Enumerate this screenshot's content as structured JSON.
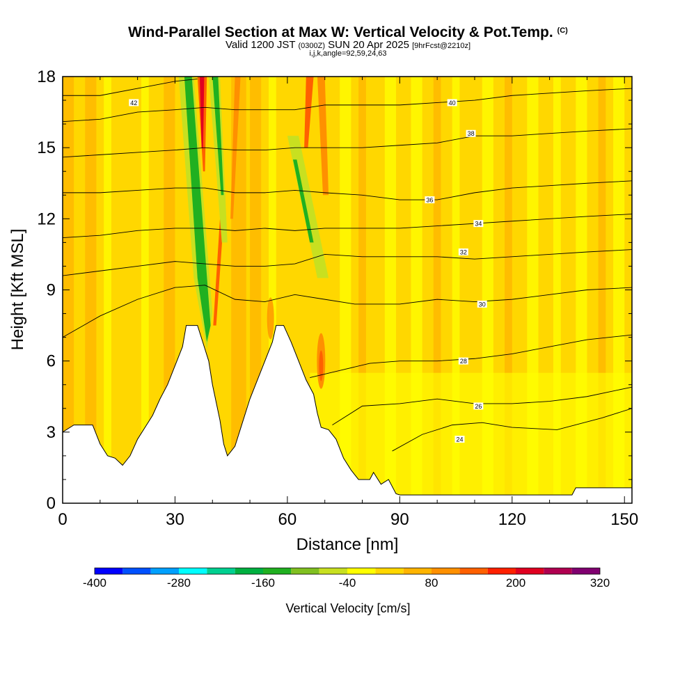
{
  "title": {
    "main": "Wind-Parallel Section at Max W: Vertical Velocity & Pot.Temp.",
    "copyright": "(C)",
    "valid_prefix": "Valid 1200 JST",
    "valid_utc": "(0300Z)",
    "valid_date": "SUN 20 Apr 2025",
    "forecast": "[9hrFcst@2210z]",
    "params": "i,j,k,angle=92,59,24,63"
  },
  "chart_data": {
    "type": "heatmap",
    "xlabel": "Distance [nm]",
    "ylabel": "Height [Kft MSL]",
    "xlim": [
      0,
      152
    ],
    "ylim": [
      0,
      18
    ],
    "xticks": [
      "0",
      "30",
      "60",
      "90",
      "120",
      "150"
    ],
    "yticks": [
      "0",
      "3",
      "6",
      "9",
      "12",
      "15",
      "18"
    ],
    "xtick_values": [
      0,
      30,
      60,
      90,
      120,
      150
    ],
    "ytick_values": [
      0,
      3,
      6,
      9,
      12,
      15,
      18
    ],
    "colorbar": {
      "label": "Vertical Velocity [cm/s]",
      "min": -400,
      "max": 320,
      "step": 40,
      "tick_labels": [
        "-400",
        "-280",
        "-160",
        "-40",
        "80",
        "200",
        "320"
      ],
      "tick_values": [
        -400,
        -280,
        -160,
        -40,
        80,
        200,
        320
      ],
      "colors": [
        "#0000ff",
        "#0050ff",
        "#00a0ff",
        "#00ffff",
        "#00d090",
        "#00b040",
        "#20b020",
        "#80c020",
        "#c8e020",
        "#ffff00",
        "#ffd700",
        "#ffb400",
        "#ff9000",
        "#ff6000",
        "#ff2000",
        "#e00020",
        "#b00050",
        "#800070"
      ]
    },
    "terrain": [
      [
        0,
        3
      ],
      [
        3,
        3.3
      ],
      [
        8,
        3.3
      ],
      [
        10,
        2.5
      ],
      [
        12,
        2
      ],
      [
        14,
        1.9
      ],
      [
        16,
        1.6
      ],
      [
        18,
        2
      ],
      [
        20,
        2.7
      ],
      [
        22,
        3.2
      ],
      [
        24,
        3.7
      ],
      [
        26,
        4.4
      ],
      [
        28,
        5
      ],
      [
        30,
        5.8
      ],
      [
        32,
        6.6
      ],
      [
        33,
        7.5
      ],
      [
        36,
        7.5
      ],
      [
        38,
        6.5
      ],
      [
        39,
        6
      ],
      [
        40,
        5
      ],
      [
        42,
        3.5
      ],
      [
        43,
        2.5
      ],
      [
        44,
        2
      ],
      [
        46,
        2.4
      ],
      [
        48,
        3.4
      ],
      [
        50,
        4.4
      ],
      [
        52,
        5.2
      ],
      [
        54,
        6
      ],
      [
        56,
        6.8
      ],
      [
        57,
        7.5
      ],
      [
        59,
        7.5
      ],
      [
        61,
        6.8
      ],
      [
        63,
        6
      ],
      [
        65,
        5.2
      ],
      [
        67,
        4.6
      ],
      [
        68,
        3.8
      ],
      [
        69,
        3.2
      ],
      [
        71,
        3.1
      ],
      [
        73,
        2.7
      ],
      [
        75,
        1.9
      ],
      [
        77,
        1.4
      ],
      [
        79,
        1
      ],
      [
        82,
        1
      ],
      [
        83,
        1.3
      ],
      [
        85,
        0.8
      ],
      [
        87,
        1
      ],
      [
        89,
        0.4
      ],
      [
        90,
        0.35
      ],
      [
        136,
        0.35
      ],
      [
        137,
        0.65
      ],
      [
        152,
        0.65
      ]
    ],
    "theta_contours": [
      {
        "label": "24",
        "points": [
          [
            88,
            2.2
          ],
          [
            96,
            2.9
          ],
          [
            104,
            3.3
          ],
          [
            112,
            3.4
          ],
          [
            120,
            3.2
          ],
          [
            132,
            3.1
          ],
          [
            144,
            3.6
          ],
          [
            152,
            4
          ]
        ],
        "label_at": [
          106,
          2.7
        ]
      },
      {
        "label": "26",
        "points": [
          [
            72,
            3.3
          ],
          [
            80,
            4.1
          ],
          [
            90,
            4.2
          ],
          [
            100,
            4.4
          ],
          [
            110,
            4.2
          ],
          [
            120,
            4.2
          ],
          [
            130,
            4.3
          ],
          [
            140,
            4.5
          ],
          [
            152,
            4.9
          ]
        ],
        "label_at": [
          111,
          4.1
        ]
      },
      {
        "label": "28",
        "points": [
          [
            66,
            5.3
          ],
          [
            74,
            5.6
          ],
          [
            82,
            5.9
          ],
          [
            90,
            6
          ],
          [
            100,
            6
          ],
          [
            110,
            6.1
          ],
          [
            120,
            6.3
          ],
          [
            130,
            6.6
          ],
          [
            140,
            6.9
          ],
          [
            152,
            7.1
          ]
        ],
        "label_at": [
          107,
          6
        ]
      },
      {
        "label": "30",
        "points": [
          [
            0,
            7
          ],
          [
            10,
            7.9
          ],
          [
            20,
            8.6
          ],
          [
            30,
            9.1
          ],
          [
            38,
            9.2
          ],
          [
            46,
            8.6
          ],
          [
            54,
            8.5
          ],
          [
            62,
            8.8
          ],
          [
            70,
            8.6
          ],
          [
            78,
            8.4
          ],
          [
            90,
            8.4
          ],
          [
            100,
            8.6
          ],
          [
            110,
            8.5
          ],
          [
            120,
            8.6
          ],
          [
            130,
            8.8
          ],
          [
            140,
            9
          ],
          [
            152,
            9.1
          ]
        ],
        "label_at": [
          112,
          8.4
        ]
      },
      {
        "label": "32",
        "points": [
          [
            0,
            9.6
          ],
          [
            10,
            9.8
          ],
          [
            20,
            10
          ],
          [
            30,
            10.2
          ],
          [
            38,
            10.1
          ],
          [
            46,
            10
          ],
          [
            54,
            10
          ],
          [
            62,
            10.1
          ],
          [
            70,
            10.5
          ],
          [
            80,
            10.4
          ],
          [
            90,
            10.4
          ],
          [
            100,
            10.4
          ],
          [
            110,
            10.3
          ],
          [
            120,
            10.4
          ],
          [
            130,
            10.5
          ],
          [
            140,
            10.6
          ],
          [
            152,
            10.7
          ]
        ],
        "label_at": [
          107,
          10.6
        ]
      },
      {
        "label": "34",
        "points": [
          [
            0,
            11.2
          ],
          [
            10,
            11.3
          ],
          [
            20,
            11.5
          ],
          [
            30,
            11.6
          ],
          [
            38,
            11.6
          ],
          [
            46,
            11.5
          ],
          [
            54,
            11.6
          ],
          [
            62,
            11.5
          ],
          [
            70,
            11.6
          ],
          [
            80,
            11.6
          ],
          [
            90,
            11.6
          ],
          [
            100,
            11.7
          ],
          [
            110,
            11.8
          ],
          [
            120,
            11.9
          ],
          [
            130,
            12
          ],
          [
            140,
            12.1
          ],
          [
            152,
            12.2
          ]
        ],
        "label_at": [
          111,
          11.8
        ]
      },
      {
        "label": "36",
        "points": [
          [
            0,
            13.1
          ],
          [
            10,
            13.1
          ],
          [
            20,
            13.2
          ],
          [
            30,
            13.3
          ],
          [
            38,
            13.3
          ],
          [
            46,
            13.1
          ],
          [
            54,
            13.1
          ],
          [
            62,
            13.2
          ],
          [
            70,
            13.1
          ],
          [
            80,
            13
          ],
          [
            90,
            12.8
          ],
          [
            100,
            12.8
          ],
          [
            110,
            13.1
          ],
          [
            120,
            13.3
          ],
          [
            130,
            13.4
          ],
          [
            140,
            13.5
          ],
          [
            152,
            13.6
          ]
        ],
        "label_at": [
          98,
          12.8
        ]
      },
      {
        "label": "38",
        "points": [
          [
            0,
            14.6
          ],
          [
            10,
            14.7
          ],
          [
            20,
            14.8
          ],
          [
            30,
            14.9
          ],
          [
            38,
            15
          ],
          [
            46,
            14.9
          ],
          [
            54,
            14.9
          ],
          [
            62,
            15
          ],
          [
            70,
            15
          ],
          [
            80,
            15
          ],
          [
            90,
            15.1
          ],
          [
            100,
            15.2
          ],
          [
            110,
            15.5
          ],
          [
            120,
            15.5
          ],
          [
            130,
            15.6
          ],
          [
            140,
            15.7
          ],
          [
            152,
            15.8
          ]
        ],
        "label_at": [
          109,
          15.6
        ]
      },
      {
        "label": "40",
        "points": [
          [
            0,
            16.1
          ],
          [
            10,
            16.2
          ],
          [
            20,
            16.5
          ],
          [
            30,
            16.6
          ],
          [
            38,
            16.7
          ],
          [
            46,
            16.6
          ],
          [
            54,
            16.6
          ],
          [
            62,
            16.6
          ],
          [
            70,
            16.8
          ],
          [
            80,
            16.8
          ],
          [
            90,
            16.8
          ],
          [
            100,
            16.9
          ],
          [
            110,
            17
          ],
          [
            120,
            17.2
          ],
          [
            130,
            17.3
          ],
          [
            140,
            17.4
          ],
          [
            152,
            17.5
          ]
        ],
        "label_at": [
          104,
          16.9
        ]
      },
      {
        "label": "42",
        "points": [
          [
            0,
            17.2
          ],
          [
            10,
            17.2
          ],
          [
            20,
            17.5
          ],
          [
            30,
            17.8
          ],
          [
            36,
            17.9
          ]
        ],
        "label_at": [
          19,
          16.9
        ]
      }
    ]
  }
}
